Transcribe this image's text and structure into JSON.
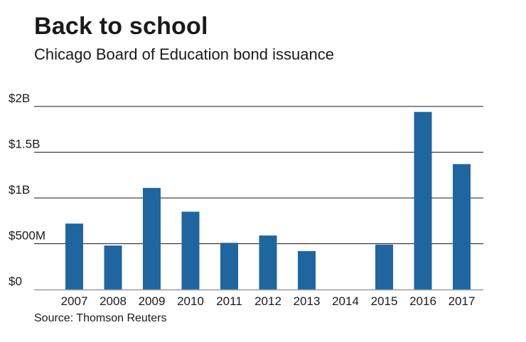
{
  "chart_data": {
    "type": "bar",
    "title": "Back to school",
    "subtitle": "Chicago Board of Education bond issuance",
    "source": "Source: Thomson Reuters",
    "categories": [
      "2007",
      "2008",
      "2009",
      "2010",
      "2011",
      "2012",
      "2013",
      "2014",
      "2015",
      "2016",
      "2017"
    ],
    "values": [
      0.72,
      0.48,
      1.11,
      0.85,
      0.51,
      0.59,
      0.42,
      0,
      0.49,
      1.94,
      1.37
    ],
    "value_unit": "billion USD",
    "ylim": [
      0,
      2
    ],
    "yticks": [
      {
        "value": 0,
        "label": "$0"
      },
      {
        "value": 0.5,
        "label": "$500M"
      },
      {
        "value": 1,
        "label": "$1B"
      },
      {
        "value": 1.5,
        "label": "$1.5B"
      },
      {
        "value": 2,
        "label": "$2B"
      }
    ],
    "grid": true,
    "bar_color": "#1f66a0",
    "grid_color": "#1a1a1a"
  }
}
